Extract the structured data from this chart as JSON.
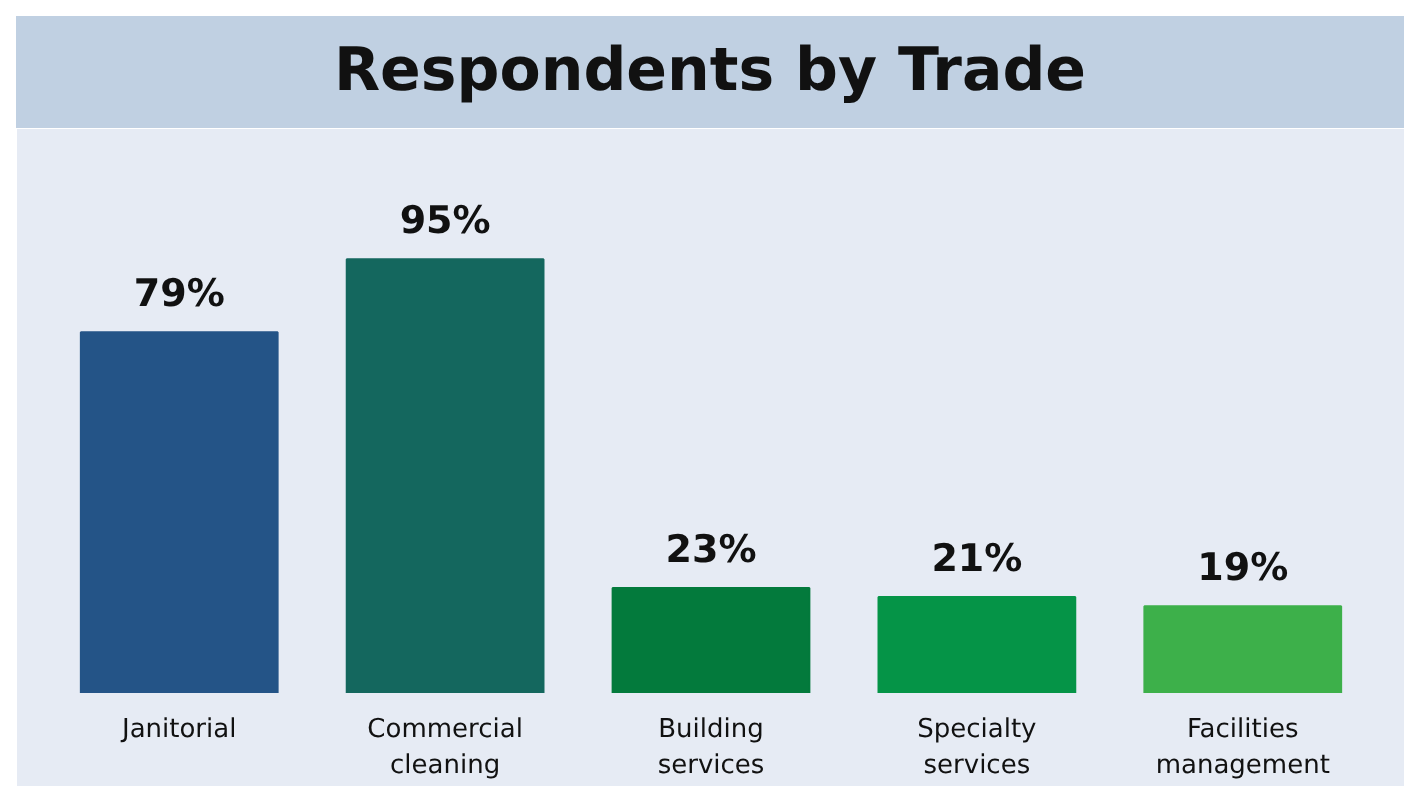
{
  "chart_data": {
    "type": "bar",
    "title": "Respondents by Trade",
    "categories": [
      "Janitorial",
      "Commercial cleaning",
      "Building services",
      "Specialty services",
      "Facilities management"
    ],
    "values": [
      79,
      95,
      23,
      21,
      19
    ],
    "colors": [
      "#245487",
      "#14675e",
      "#037a3c",
      "#059447",
      "#3db04a"
    ],
    "value_labels": [
      "79%",
      "95%",
      "23%",
      "21%",
      "19%"
    ]
  }
}
